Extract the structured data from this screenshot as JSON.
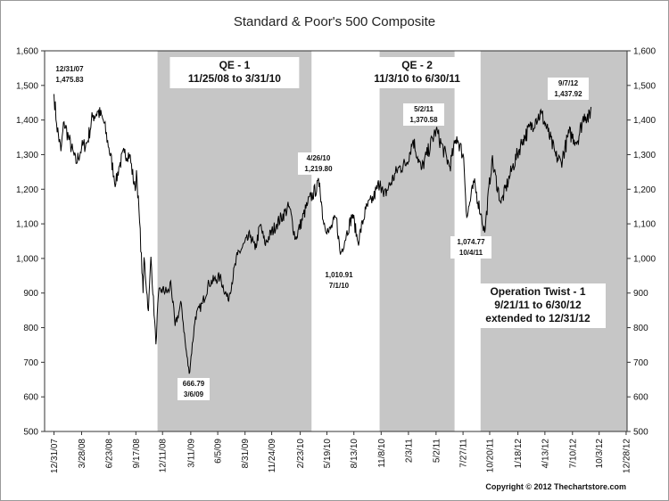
{
  "chart_data": {
    "type": "line",
    "title": "Standard & Poor's 500 Composite",
    "copyright": "Copyright © 2012 Thechartstore.com",
    "ylim": [
      500,
      1600
    ],
    "yticks": [
      "500",
      "600",
      "700",
      "800",
      "900",
      "1,000",
      "1,100",
      "1,200",
      "1,300",
      "1,400",
      "1,500",
      "1,600"
    ],
    "ytick_values": [
      500,
      600,
      700,
      800,
      900,
      1000,
      1100,
      1200,
      1300,
      1400,
      1500,
      1600
    ],
    "xlim": [
      "2007-12-01",
      "2012-12-31"
    ],
    "xticks": [
      {
        "label": "12/31/07",
        "date": "2007-12-31"
      },
      {
        "label": "3/28/08",
        "date": "2008-03-28"
      },
      {
        "label": "6/23/08",
        "date": "2008-06-23"
      },
      {
        "label": "9/17/08",
        "date": "2008-09-17"
      },
      {
        "label": "12/11/08",
        "date": "2008-12-11"
      },
      {
        "label": "3/11/09",
        "date": "2009-03-11"
      },
      {
        "label": "6/5/09",
        "date": "2009-06-05"
      },
      {
        "label": "8/31/09",
        "date": "2009-08-31"
      },
      {
        "label": "11/24/09",
        "date": "2009-11-24"
      },
      {
        "label": "2/23/10",
        "date": "2010-02-23"
      },
      {
        "label": "5/19/10",
        "date": "2010-05-19"
      },
      {
        "label": "8/13/10",
        "date": "2010-08-13"
      },
      {
        "label": "11/8/10",
        "date": "2010-11-08"
      },
      {
        "label": "2/3/11",
        "date": "2011-02-03"
      },
      {
        "label": "5/2/11",
        "date": "2011-05-02"
      },
      {
        "label": "7/27/11",
        "date": "2011-07-27"
      },
      {
        "label": "10/20/11",
        "date": "2011-10-20"
      },
      {
        "label": "1/18/12",
        "date": "2012-01-18"
      },
      {
        "label": "4/13/12",
        "date": "2012-04-13"
      },
      {
        "label": "7/10/12",
        "date": "2012-07-10"
      },
      {
        "label": "10/3/12",
        "date": "2012-10-03"
      },
      {
        "label": "12/28/12",
        "date": "2012-12-28"
      }
    ],
    "programs": [
      {
        "name": "QE - 1",
        "range": "11/25/08 to 3/31/10",
        "start": "2008-11-25",
        "end": "2010-03-31"
      },
      {
        "name": "QE - 2",
        "range": "11/3/10 to 6/30/11",
        "start": "2010-11-03",
        "end": "2011-06-30"
      },
      {
        "name": "Operation Twist - 1",
        "range": "9/21/11 to 6/30/12",
        "extra": "extended to 12/31/12",
        "start": "2011-09-21",
        "end": "2012-12-31"
      }
    ],
    "annotations": [
      {
        "date_label": "12/31/07",
        "value_label": "1,475.83",
        "date": "2007-12-31",
        "value": 1475.83
      },
      {
        "date_label": "3/6/09",
        "value_label": "666.79",
        "date": "2009-03-06",
        "value": 666.79
      },
      {
        "date_label": "4/26/10",
        "value_label": "1,219.80",
        "date": "2010-04-26",
        "value": 1219.8
      },
      {
        "date_label": "7/1/10",
        "value_label": "1,010.91",
        "date": "2010-07-01",
        "value": 1010.91
      },
      {
        "date_label": "5/2/11",
        "value_label": "1,370.58",
        "date": "2011-05-02",
        "value": 1370.58
      },
      {
        "date_label": "10/4/11",
        "value_label": "1,074.77",
        "date": "2011-10-04",
        "value": 1074.77
      },
      {
        "date_label": "9/7/12",
        "value_label": "1,437.92",
        "date": "2012-09-07",
        "value": 1437.92
      }
    ],
    "series": [
      {
        "values": [
          [
            "2007-12-31",
            1475
          ],
          [
            "2008-01-08",
            1390
          ],
          [
            "2008-01-22",
            1310
          ],
          [
            "2008-02-01",
            1395
          ],
          [
            "2008-02-15",
            1350
          ],
          [
            "2008-03-10",
            1275
          ],
          [
            "2008-03-28",
            1320
          ],
          [
            "2008-04-15",
            1335
          ],
          [
            "2008-05-02",
            1410
          ],
          [
            "2008-05-19",
            1425
          ],
          [
            "2008-06-05",
            1400
          ],
          [
            "2008-06-23",
            1320
          ],
          [
            "2008-07-15",
            1215
          ],
          [
            "2008-07-25",
            1265
          ],
          [
            "2008-08-11",
            1305
          ],
          [
            "2008-08-28",
            1300
          ],
          [
            "2008-09-15",
            1195
          ],
          [
            "2008-09-19",
            1255
          ],
          [
            "2008-09-29",
            1105
          ],
          [
            "2008-10-10",
            900
          ],
          [
            "2008-10-13",
            1003
          ],
          [
            "2008-10-27",
            848
          ],
          [
            "2008-11-04",
            1005
          ],
          [
            "2008-11-20",
            752
          ],
          [
            "2008-11-28",
            896
          ],
          [
            "2008-12-08",
            909
          ],
          [
            "2008-12-31",
            903
          ],
          [
            "2009-01-06",
            935
          ],
          [
            "2009-01-20",
            805
          ],
          [
            "2009-02-09",
            870
          ],
          [
            "2009-02-23",
            743
          ],
          [
            "2009-03-06",
            667
          ],
          [
            "2009-03-26",
            832
          ],
          [
            "2009-04-17",
            870
          ],
          [
            "2009-05-08",
            929
          ],
          [
            "2009-06-12",
            946
          ],
          [
            "2009-07-08",
            880
          ],
          [
            "2009-08-07",
            1010
          ],
          [
            "2009-09-18",
            1068
          ],
          [
            "2009-10-02",
            1025
          ],
          [
            "2009-10-19",
            1098
          ],
          [
            "2009-11-02",
            1042
          ],
          [
            "2009-12-10",
            1100
          ],
          [
            "2010-01-19",
            1150
          ],
          [
            "2010-02-08",
            1056
          ],
          [
            "2010-03-19",
            1160
          ],
          [
            "2010-04-26",
            1219
          ],
          [
            "2010-05-07",
            1110
          ],
          [
            "2010-05-25",
            1075
          ],
          [
            "2010-06-18",
            1118
          ],
          [
            "2010-07-01",
            1011
          ],
          [
            "2010-07-20",
            1070
          ],
          [
            "2010-08-09",
            1128
          ],
          [
            "2010-08-26",
            1047
          ],
          [
            "2010-09-20",
            1142
          ],
          [
            "2010-10-15",
            1176
          ],
          [
            "2010-11-05",
            1225
          ],
          [
            "2010-11-16",
            1178
          ],
          [
            "2010-12-31",
            1258
          ],
          [
            "2011-01-28",
            1276
          ],
          [
            "2011-02-18",
            1343
          ],
          [
            "2011-03-16",
            1256
          ],
          [
            "2011-04-29",
            1364
          ],
          [
            "2011-05-02",
            1370
          ],
          [
            "2011-06-15",
            1265
          ],
          [
            "2011-07-07",
            1353
          ],
          [
            "2011-07-29",
            1292
          ],
          [
            "2011-08-08",
            1119
          ],
          [
            "2011-08-31",
            1219
          ],
          [
            "2011-09-22",
            1129
          ],
          [
            "2011-10-04",
            1075
          ],
          [
            "2011-10-27",
            1285
          ],
          [
            "2011-11-25",
            1159
          ],
          [
            "2011-12-30",
            1258
          ],
          [
            "2012-02-03",
            1345
          ],
          [
            "2012-03-16",
            1404
          ],
          [
            "2012-04-02",
            1419
          ],
          [
            "2012-04-23",
            1366
          ],
          [
            "2012-05-18",
            1295
          ],
          [
            "2012-06-04",
            1278
          ],
          [
            "2012-06-29",
            1362
          ],
          [
            "2012-07-25",
            1338
          ],
          [
            "2012-08-17",
            1418
          ],
          [
            "2012-09-04",
            1404
          ],
          [
            "2012-09-07",
            1438
          ]
        ]
      }
    ]
  }
}
